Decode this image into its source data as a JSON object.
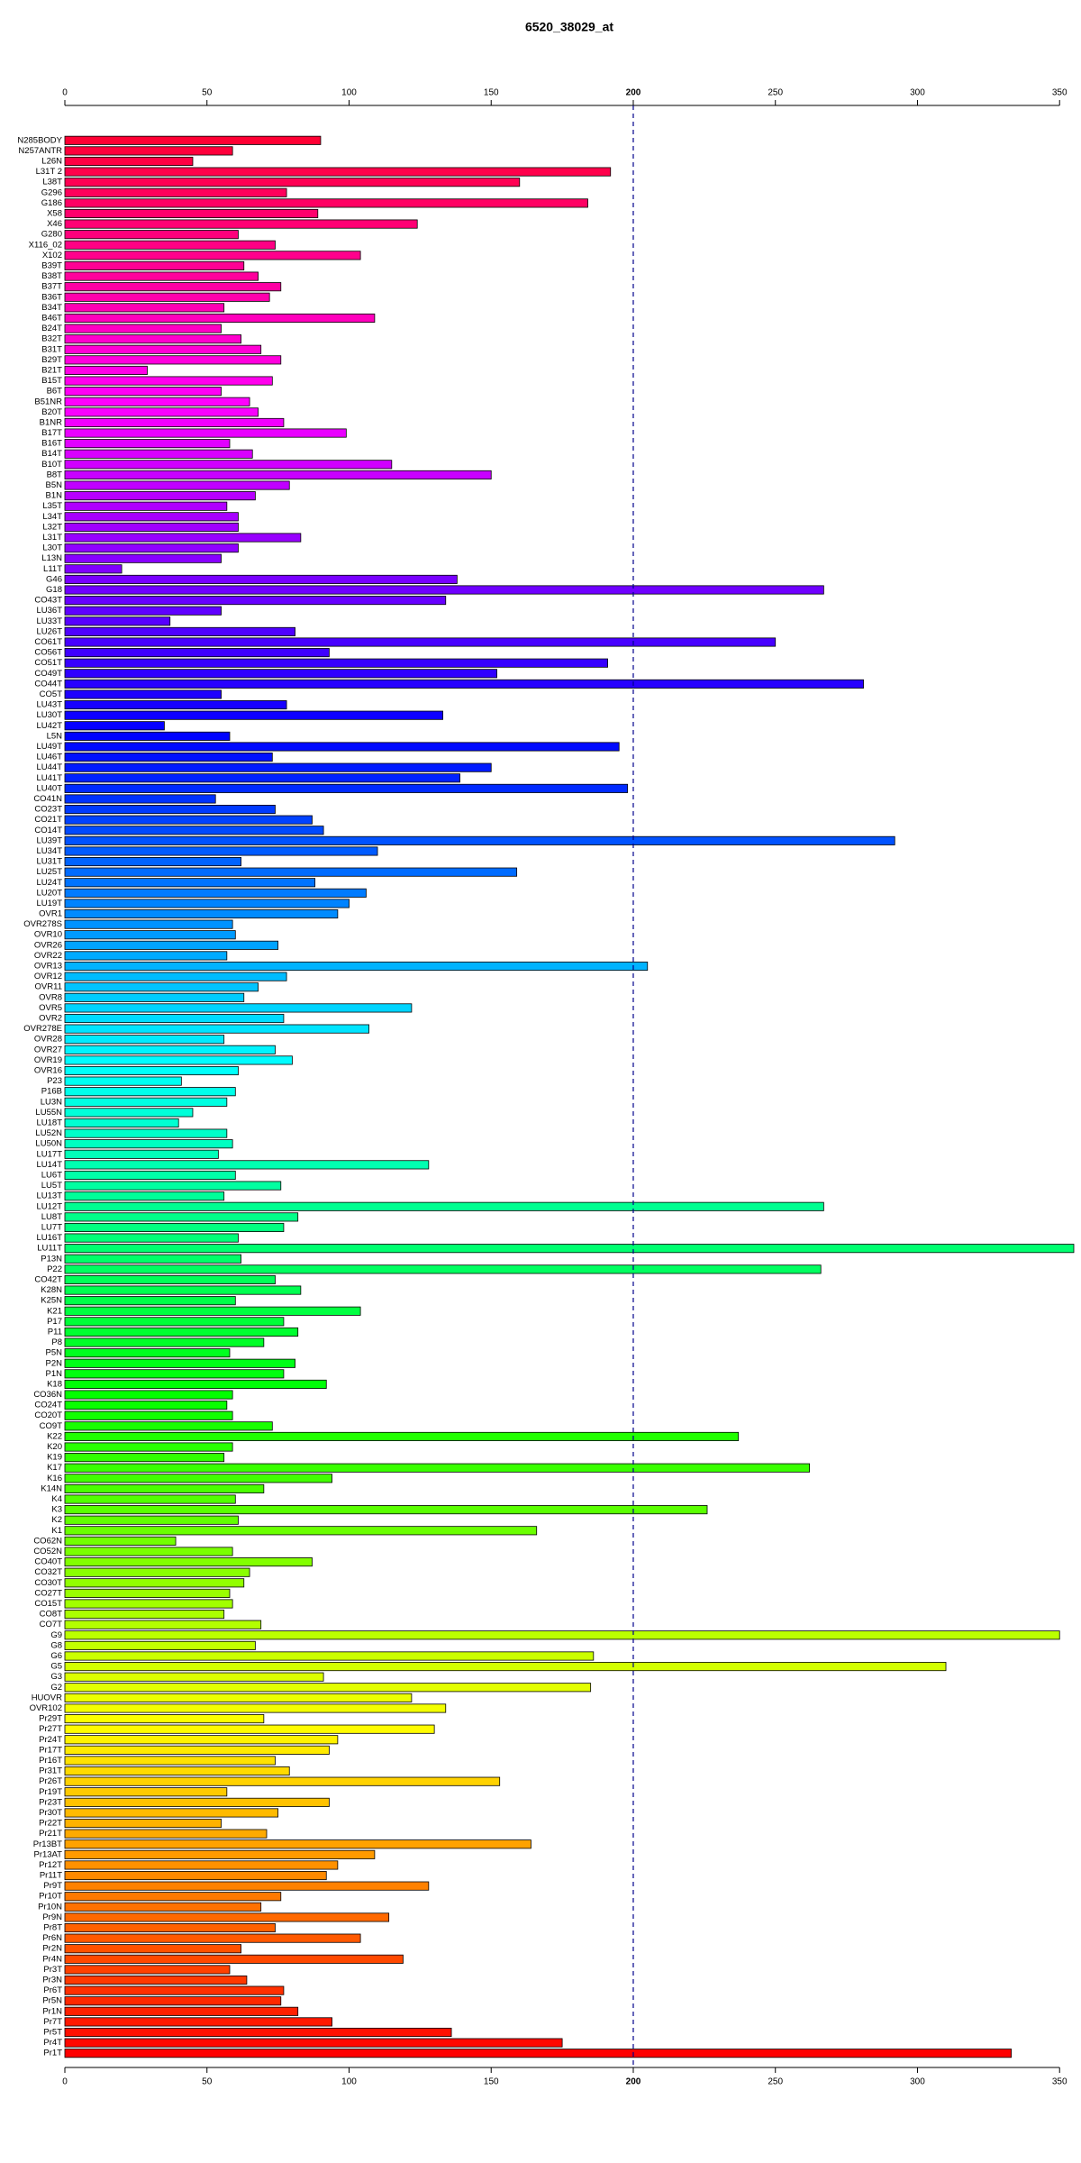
{
  "chart_data": {
    "type": "barh",
    "title": "6520_38029_at",
    "categories": [
      "N285BODY",
      "N257ANTR",
      "L26N",
      "L31T 2",
      "L38T",
      "G296",
      "G186",
      "X58",
      "X46",
      "G280",
      "X116_02",
      "X102",
      "B39T",
      "B38T",
      "B37T",
      "B36T",
      "B34T",
      "B46T",
      "B24T",
      "B32T",
      "B31T",
      "B29T",
      "B21T",
      "B15T",
      "B6T",
      "B51NR",
      "B20T",
      "B1NR",
      "B17T",
      "B16T",
      "B14T",
      "B10T",
      "B8T",
      "B5N",
      "B1N",
      "L35T",
      "L34T",
      "L32T",
      "L31T",
      "L30T",
      "L13N",
      "L11T",
      "G46",
      "G18",
      "CO43T",
      "LU36T",
      "LU33T",
      "LU26T",
      "CO61T",
      "CO56T",
      "CO51T",
      "CO49T",
      "CO44T",
      "CO5T",
      "LU43T",
      "LU30T",
      "LU42T",
      "L5N",
      "LU49T",
      "LU46T",
      "LU44T",
      "LU41T",
      "LU40T",
      "CO41N",
      "CO23T",
      "CO21T",
      "CO14T",
      "LU39T",
      "LU34T",
      "LU31T",
      "LU25T",
      "LU24T",
      "LU20T",
      "LU19T",
      "OVR1",
      "OVR278S",
      "OVR10",
      "OVR26",
      "OVR22",
      "OVR13",
      "OVR12",
      "OVR11",
      "OVR8",
      "OVR5",
      "OVR2",
      "OVR278E",
      "OVR28",
      "OVR27",
      "OVR19",
      "OVR16",
      "P23",
      "P16B",
      "LU3N",
      "LU55N",
      "LU18T",
      "LU52N",
      "LU50N",
      "LU17T",
      "LU14T",
      "LU6T",
      "LU5T",
      "LU13T",
      "LU12T",
      "LU8T",
      "LU7T",
      "LU16T",
      "LU11T",
      "P13N",
      "P22",
      "CO42T",
      "K28N",
      "K25N",
      "K21",
      "P17",
      "P11",
      "P8",
      "P5N",
      "P2N",
      "P1N",
      "K18",
      "CO36N",
      "CO24T",
      "CO20T",
      "CO9T",
      "K22",
      "K20",
      "K19",
      "K17",
      "K16",
      "K14N",
      "K4",
      "K3",
      "K2",
      "K1",
      "CO62N",
      "CO52N",
      "CO40T",
      "CO32T",
      "CO30T",
      "CO27T",
      "CO15T",
      "CO8T",
      "CO7T",
      "G9",
      "G8",
      "G6",
      "G5",
      "G3",
      "G2",
      "HUOVR",
      "OVR102",
      "Pr29T",
      "Pr27T",
      "Pr24T",
      "Pr17T",
      "Pr16T",
      "Pr31T",
      "Pr26T",
      "Pr19T",
      "Pr23T",
      "Pr30T",
      "Pr22T",
      "Pr21T",
      "Pr13BT",
      "Pr13AT",
      "Pr12T",
      "Pr11T",
      "Pr9T",
      "Pr10T",
      "Pr10N",
      "Pr9N",
      "Pr8T",
      "Pr6N",
      "Pr2N",
      "Pr4N",
      "Pr3T",
      "Pr3N",
      "Pr6T",
      "Pr5N",
      "Pr1N",
      "Pr7T",
      "Pr5T",
      "Pr4T",
      "Pr1T"
    ],
    "values": [
      90,
      59,
      45,
      192,
      160,
      78,
      184,
      89,
      124,
      61,
      74,
      104,
      63,
      68,
      76,
      72,
      56,
      109,
      55,
      62,
      69,
      76,
      29,
      73,
      55,
      65,
      68,
      77,
      99,
      58,
      66,
      115,
      150,
      79,
      67,
      57,
      61,
      61,
      83,
      61,
      55,
      20,
      138,
      267,
      134,
      55,
      37,
      81,
      250,
      93,
      191,
      152,
      281,
      55,
      78,
      133,
      35,
      58,
      195,
      73,
      150,
      139,
      198,
      53,
      74,
      87,
      91,
      292,
      110,
      62,
      159,
      88,
      106,
      100,
      96,
      59,
      60,
      75,
      57,
      205,
      78,
      68,
      63,
      122,
      77,
      107,
      56,
      74,
      80,
      61,
      41,
      60,
      57,
      45,
      40,
      57,
      59,
      54,
      128,
      60,
      76,
      56,
      267,
      82,
      77,
      61,
      355,
      62,
      266,
      74,
      83,
      60,
      104,
      77,
      82,
      70,
      58,
      81,
      77,
      92,
      59,
      57,
      59,
      73,
      237,
      59,
      56,
      262,
      94,
      70,
      60,
      226,
      61,
      166,
      39,
      59,
      87,
      65,
      63,
      58,
      59,
      56,
      69,
      350,
      67,
      186,
      310,
      91,
      185,
      122,
      134,
      70,
      130,
      96,
      93,
      74,
      79,
      153,
      57,
      93,
      75,
      55,
      71,
      164,
      109,
      96,
      92,
      128,
      76,
      69,
      114,
      74,
      104,
      62,
      119,
      58,
      64,
      77,
      76,
      82,
      94,
      136,
      175,
      333
    ],
    "hue_range": [
      348,
      0
    ],
    "xlim": [
      0,
      355
    ],
    "xticks": [
      0,
      50,
      100,
      150,
      200,
      250,
      300,
      350
    ],
    "reference_line": 200,
    "reference_color": "#00008b"
  }
}
